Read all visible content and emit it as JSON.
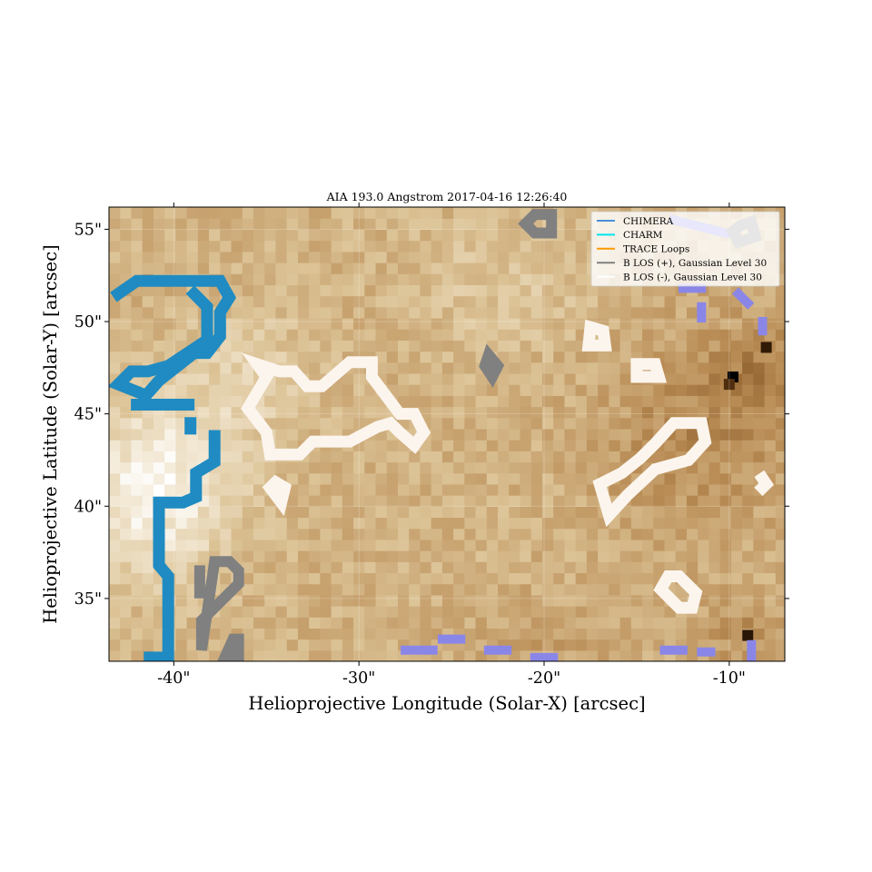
{
  "chart_data": {
    "type": "heatmap",
    "title": "AIA 193.0 Angstrom 2017-04-16 12:26:40",
    "xlabel": "Helioprojective Longitude (Solar-X) [arcsec]",
    "ylabel": "Helioprojective Latitude (Solar-Y) [arcsec]",
    "xlim": [
      -43.5,
      -7.0
    ],
    "ylim": [
      31.6,
      56.2
    ],
    "x_ticks": [
      -40,
      -30,
      -20,
      -10
    ],
    "x_tick_labels": [
      "-40\"",
      "-30\"",
      "-20\"",
      "-10\""
    ],
    "y_ticks": [
      35,
      40,
      45,
      50,
      55
    ],
    "y_tick_labels": [
      "35\"",
      "40\"",
      "45\"",
      "50\"",
      "55\""
    ],
    "grid": true,
    "legend_position": "upper-right",
    "colormap": "sdoaia193",
    "legend": [
      {
        "label": "CHIMERA",
        "color": "#4a90d9"
      },
      {
        "label": "CHARM",
        "color": "#00e5ee"
      },
      {
        "label": "TRACE Loops",
        "color": "#ff9900"
      },
      {
        "label": "B LOS (+), Gaussian Level 30",
        "color": "#808080"
      },
      {
        "label": "B LOS (-), Gaussian Level 30",
        "color": "#ffffff"
      }
    ],
    "contours": {
      "chimera_color": "#1f8bc2",
      "blos_pos_color": "#808080",
      "blos_neg_color": "#fcf5ee",
      "extra_color": "#8a86e8",
      "chimera": [
        [
          [
            -43.0,
            51.5
          ],
          [
            -42.0,
            52.2
          ],
          [
            -37.5,
            52.2
          ],
          [
            -37.0,
            51.3
          ],
          [
            -37.5,
            50.5
          ],
          [
            -37.5,
            49.2
          ],
          [
            -38.2,
            48.3
          ],
          [
            -38.9,
            48.3
          ],
          [
            -40.8,
            46.8
          ],
          [
            -41.5,
            46.0
          ],
          [
            -43.0,
            46.6
          ],
          [
            -42.3,
            47.3
          ],
          [
            -41.4,
            47.3
          ],
          [
            -40.3,
            47.6
          ],
          [
            -38.2,
            49.0
          ],
          [
            -38.2,
            50.8
          ],
          [
            -38.9,
            51.5
          ]
        ],
        [
          [
            -42.0,
            45.5
          ],
          [
            -39.2,
            45.5
          ]
        ],
        [
          [
            -37.8,
            43.8
          ],
          [
            -37.8,
            42.4
          ],
          [
            -38.8,
            41.8
          ],
          [
            -38.8,
            40.5
          ],
          [
            -39.5,
            40.2
          ],
          [
            -40.8,
            40.2
          ],
          [
            -40.8,
            36.8
          ],
          [
            -40.3,
            36.2
          ],
          [
            -40.3,
            31.8
          ],
          [
            -41.3,
            31.8
          ]
        ],
        [
          [
            -39.1,
            44.5
          ],
          [
            -39.1,
            44.2
          ]
        ]
      ],
      "blos_pos": [
        [
          [
            -37.8,
            37.0
          ],
          [
            -37.0,
            37.0
          ],
          [
            -36.5,
            36.5
          ],
          [
            -36.5,
            35.8
          ],
          [
            -38.5,
            33.8
          ],
          [
            -38.5,
            32.2
          ]
        ],
        [
          [
            -36.8,
            32.8
          ],
          [
            -36.5,
            32.8
          ],
          [
            -36.5,
            31.9
          ],
          [
            -37.2,
            31.9
          ]
        ],
        [
          [
            -38.6,
            36.5
          ],
          [
            -38.6,
            35.3
          ]
        ],
        [
          [
            -23.0,
            48.2
          ],
          [
            -22.5,
            47.6
          ],
          [
            -22.8,
            47.0
          ],
          [
            -23.2,
            47.6
          ]
        ],
        [
          [
            -20.5,
            55.8
          ],
          [
            -19.6,
            55.8
          ],
          [
            -19.6,
            54.8
          ],
          [
            -20.5,
            54.8
          ],
          [
            -21.0,
            55.3
          ]
        ],
        [
          [
            -9.4,
            55.2
          ],
          [
            -8.8,
            55.4
          ],
          [
            -8.6,
            54.6
          ],
          [
            -9.5,
            54.3
          ],
          [
            -9.8,
            54.9
          ]
        ]
      ],
      "blos_neg": [
        [
          [
            -35.5,
            47.7
          ],
          [
            -35.0,
            47.0
          ],
          [
            -36.0,
            45.3
          ],
          [
            -35.0,
            44.0
          ],
          [
            -34.8,
            42.8
          ],
          [
            -33.2,
            42.8
          ],
          [
            -32.5,
            43.5
          ],
          [
            -30.5,
            43.5
          ],
          [
            -29.0,
            44.3
          ],
          [
            -28.3,
            44.5
          ],
          [
            -27.8,
            44.0
          ],
          [
            -27.0,
            43.3
          ],
          [
            -26.5,
            44.0
          ],
          [
            -27.0,
            45.0
          ],
          [
            -27.8,
            45.0
          ],
          [
            -29.3,
            47.0
          ],
          [
            -29.3,
            47.8
          ],
          [
            -30.5,
            47.8
          ],
          [
            -32.0,
            46.5
          ],
          [
            -32.8,
            46.5
          ],
          [
            -33.5,
            47.3
          ],
          [
            -34.3,
            47.3
          ]
        ],
        [
          [
            -34.5,
            41.3
          ],
          [
            -34.0,
            41.0
          ],
          [
            -34.2,
            40.2
          ],
          [
            -34.8,
            41.0
          ]
        ],
        [
          [
            -17.5,
            49.7
          ],
          [
            -16.8,
            49.5
          ],
          [
            -16.7,
            48.7
          ],
          [
            -17.6,
            48.7
          ]
        ],
        [
          [
            -15.0,
            47.7
          ],
          [
            -14.0,
            47.7
          ],
          [
            -13.8,
            47.0
          ],
          [
            -15.0,
            47.0
          ]
        ],
        [
          [
            -17.0,
            41.2
          ],
          [
            -15.8,
            41.8
          ],
          [
            -14.8,
            42.6
          ],
          [
            -14.0,
            43.4
          ],
          [
            -13.0,
            44.5
          ],
          [
            -11.5,
            44.5
          ],
          [
            -11.3,
            43.5
          ],
          [
            -12.2,
            42.5
          ],
          [
            -14.0,
            42.0
          ],
          [
            -15.5,
            40.6
          ],
          [
            -16.5,
            39.5
          ]
        ],
        [
          [
            -13.3,
            36.2
          ],
          [
            -12.7,
            36.2
          ],
          [
            -11.8,
            35.3
          ],
          [
            -12.0,
            34.5
          ],
          [
            -12.7,
            34.5
          ],
          [
            -13.7,
            35.5
          ]
        ],
        [
          [
            -8.2,
            41.5
          ],
          [
            -8.0,
            41.2
          ],
          [
            -8.2,
            41.0
          ]
        ]
      ],
      "extra": [
        [
          [
            -27.5,
            32.2
          ],
          [
            -26.0,
            32.2
          ]
        ],
        [
          [
            -25.5,
            32.8
          ],
          [
            -24.5,
            32.8
          ]
        ],
        [
          [
            -23.0,
            32.2
          ],
          [
            -22.0,
            32.2
          ]
        ],
        [
          [
            -20.5,
            31.8
          ],
          [
            -19.5,
            31.8
          ]
        ],
        [
          [
            -13.5,
            32.2
          ],
          [
            -12.5,
            32.2
          ]
        ],
        [
          [
            -11.5,
            32.1
          ],
          [
            -11.0,
            32.1
          ]
        ],
        [
          [
            -8.8,
            32.5
          ],
          [
            -8.8,
            31.8
          ]
        ],
        [
          [
            -12.5,
            51.8
          ],
          [
            -11.5,
            51.8
          ]
        ],
        [
          [
            -9.5,
            51.5
          ],
          [
            -9.0,
            51.0
          ]
        ],
        [
          [
            -8.2,
            50.0
          ],
          [
            -8.2,
            49.5
          ]
        ],
        [
          [
            -11.5,
            50.8
          ],
          [
            -11.5,
            50.2
          ]
        ],
        [
          [
            -13.0,
            55.5
          ],
          [
            -10.2,
            54.8
          ]
        ]
      ]
    }
  }
}
